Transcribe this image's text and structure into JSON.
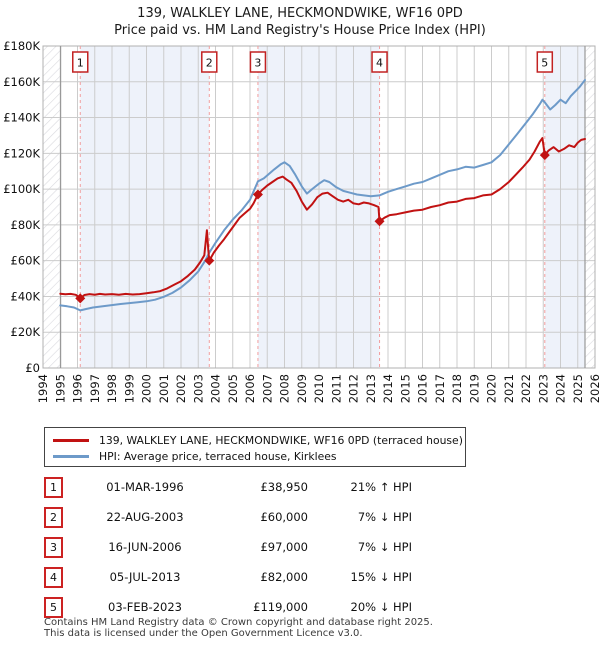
{
  "title": {
    "line1": "139, WALKLEY LANE, HECKMONDWIKE, WF16 0PD",
    "line2": "Price paid vs. HM Land Registry's House Price Index (HPI)"
  },
  "colors": {
    "property": "#c11212",
    "hpi": "#6d9ac9",
    "band": "#eef2fa",
    "flag_line": "#f29d9d",
    "flag_border": "#c22222",
    "grid": "#cccccc",
    "frame": "#b0b0b0",
    "edge_line": "#999999",
    "hatch": "#d9d9de"
  },
  "chart_data": {
    "type": "line",
    "x_axis": {
      "min": 1994,
      "max": 2026,
      "years": [
        1994,
        1995,
        1996,
        1997,
        1998,
        1999,
        2000,
        2001,
        2002,
        2003,
        2004,
        2005,
        2006,
        2007,
        2008,
        2009,
        2010,
        2011,
        2012,
        2013,
        2014,
        2015,
        2016,
        2017,
        2018,
        2019,
        2020,
        2021,
        2022,
        2023,
        2024,
        2025,
        2026
      ]
    },
    "y_axis": {
      "min": 0,
      "max": 180000,
      "ticks": [
        {
          "v": 0,
          "label": "£0"
        },
        {
          "v": 20000,
          "label": "£20K"
        },
        {
          "v": 40000,
          "label": "£40K"
        },
        {
          "v": 60000,
          "label": "£60K"
        },
        {
          "v": 80000,
          "label": "£80K"
        },
        {
          "v": 100000,
          "label": "£100K"
        },
        {
          "v": 120000,
          "label": "£120K"
        },
        {
          "v": 140000,
          "label": "£140K"
        },
        {
          "v": 160000,
          "label": "£160K"
        },
        {
          "v": 180000,
          "label": "£180K"
        }
      ]
    },
    "data_start": 1995.02,
    "data_end": 2025.42,
    "ownership_bands": [
      [
        1996.16,
        2003.64
      ],
      [
        2006.46,
        2013.51
      ],
      [
        2023.09,
        2025.42
      ]
    ],
    "hatch_regions": [
      [
        1994,
        1995.02
      ],
      [
        2025.42,
        2026
      ]
    ],
    "series": [
      {
        "name": "hpi",
        "color_key": "hpi",
        "points": [
          [
            1995.0,
            35000
          ],
          [
            1995.4,
            34500
          ],
          [
            1995.8,
            33800
          ],
          [
            1996.16,
            32200
          ],
          [
            1996.5,
            33000
          ],
          [
            1996.9,
            33800
          ],
          [
            1997.3,
            34300
          ],
          [
            1997.7,
            34800
          ],
          [
            1998.1,
            35300
          ],
          [
            1998.5,
            35800
          ],
          [
            1999.0,
            36300
          ],
          [
            1999.5,
            36800
          ],
          [
            2000.0,
            37300
          ],
          [
            2000.5,
            38200
          ],
          [
            2001.0,
            39800
          ],
          [
            2001.5,
            42000
          ],
          [
            2002.0,
            45000
          ],
          [
            2002.5,
            49000
          ],
          [
            2003.0,
            54000
          ],
          [
            2003.4,
            60000
          ],
          [
            2003.64,
            64500
          ],
          [
            2004.0,
            70000
          ],
          [
            2004.5,
            77000
          ],
          [
            2005.0,
            83000
          ],
          [
            2005.5,
            88000
          ],
          [
            2006.0,
            94000
          ],
          [
            2006.46,
            104300
          ],
          [
            2006.8,
            106000
          ],
          [
            2007.1,
            108500
          ],
          [
            2007.4,
            111000
          ],
          [
            2007.8,
            114000
          ],
          [
            2008.0,
            115000
          ],
          [
            2008.3,
            113000
          ],
          [
            2008.6,
            108500
          ],
          [
            2009.0,
            101500
          ],
          [
            2009.3,
            97500
          ],
          [
            2009.6,
            100000
          ],
          [
            2010.0,
            103000
          ],
          [
            2010.3,
            105000
          ],
          [
            2010.6,
            104000
          ],
          [
            2011.0,
            101000
          ],
          [
            2011.4,
            99000
          ],
          [
            2011.8,
            98000
          ],
          [
            2012.2,
            97000
          ],
          [
            2012.6,
            96500
          ],
          [
            2013.0,
            96000
          ],
          [
            2013.51,
            96500
          ],
          [
            2014.0,
            98500
          ],
          [
            2014.5,
            100000
          ],
          [
            2015.0,
            101500
          ],
          [
            2015.5,
            103000
          ],
          [
            2016.0,
            104000
          ],
          [
            2016.5,
            106000
          ],
          [
            2017.0,
            108000
          ],
          [
            2017.5,
            110000
          ],
          [
            2018.0,
            111000
          ],
          [
            2018.5,
            112500
          ],
          [
            2019.0,
            112000
          ],
          [
            2019.5,
            113500
          ],
          [
            2020.0,
            115000
          ],
          [
            2020.5,
            119000
          ],
          [
            2021.0,
            125000
          ],
          [
            2021.5,
            131000
          ],
          [
            2022.0,
            137000
          ],
          [
            2022.4,
            142000
          ],
          [
            2022.8,
            147500
          ],
          [
            2022.95,
            150000
          ],
          [
            2023.09,
            148500
          ],
          [
            2023.4,
            144500
          ],
          [
            2023.7,
            147000
          ],
          [
            2024.0,
            150000
          ],
          [
            2024.3,
            148000
          ],
          [
            2024.6,
            152000
          ],
          [
            2024.9,
            155000
          ],
          [
            2025.1,
            157000
          ],
          [
            2025.3,
            159500
          ],
          [
            2025.42,
            161000
          ]
        ]
      },
      {
        "name": "property",
        "color_key": "property",
        "points": [
          [
            1995.0,
            41500
          ],
          [
            1995.3,
            41200
          ],
          [
            1995.6,
            41400
          ],
          [
            1995.9,
            40900
          ],
          [
            1996.16,
            38950
          ],
          [
            1996.4,
            40800
          ],
          [
            1996.7,
            41300
          ],
          [
            1997.0,
            41000
          ],
          [
            1997.3,
            41400
          ],
          [
            1997.6,
            41100
          ],
          [
            1998.0,
            41300
          ],
          [
            1998.4,
            40900
          ],
          [
            1998.8,
            41400
          ],
          [
            1999.2,
            41100
          ],
          [
            1999.6,
            41300
          ],
          [
            2000.0,
            41800
          ],
          [
            2000.4,
            42300
          ],
          [
            2000.8,
            43000
          ],
          [
            2001.2,
            44500
          ],
          [
            2001.6,
            46500
          ],
          [
            2002.0,
            48500
          ],
          [
            2002.4,
            51500
          ],
          [
            2002.8,
            55000
          ],
          [
            2003.1,
            59000
          ],
          [
            2003.35,
            63000
          ],
          [
            2003.5,
            77000
          ],
          [
            2003.58,
            66000
          ],
          [
            2003.64,
            60000
          ],
          [
            2003.9,
            64500
          ],
          [
            2004.2,
            68500
          ],
          [
            2004.5,
            72000
          ],
          [
            2004.8,
            76000
          ],
          [
            2005.1,
            80000
          ],
          [
            2005.4,
            84000
          ],
          [
            2005.7,
            86500
          ],
          [
            2006.0,
            89000
          ],
          [
            2006.2,
            92000
          ],
          [
            2006.46,
            97000
          ],
          [
            2006.7,
            99500
          ],
          [
            2007.0,
            102000
          ],
          [
            2007.3,
            104000
          ],
          [
            2007.6,
            106000
          ],
          [
            2007.9,
            107000
          ],
          [
            2008.1,
            105500
          ],
          [
            2008.4,
            103500
          ],
          [
            2008.7,
            99000
          ],
          [
            2009.0,
            93000
          ],
          [
            2009.3,
            88500
          ],
          [
            2009.6,
            91500
          ],
          [
            2009.9,
            95500
          ],
          [
            2010.2,
            97500
          ],
          [
            2010.5,
            98000
          ],
          [
            2010.8,
            96000
          ],
          [
            2011.1,
            94000
          ],
          [
            2011.4,
            93000
          ],
          [
            2011.7,
            94000
          ],
          [
            2012.0,
            92000
          ],
          [
            2012.3,
            91500
          ],
          [
            2012.6,
            92500
          ],
          [
            2012.9,
            92000
          ],
          [
            2013.2,
            91000
          ],
          [
            2013.45,
            90000
          ],
          [
            2013.51,
            82000
          ],
          [
            2013.8,
            84000
          ],
          [
            2014.1,
            85500
          ],
          [
            2014.5,
            86000
          ],
          [
            2015.0,
            87000
          ],
          [
            2015.5,
            88000
          ],
          [
            2016.0,
            88500
          ],
          [
            2016.5,
            90000
          ],
          [
            2017.0,
            91000
          ],
          [
            2017.5,
            92500
          ],
          [
            2018.0,
            93000
          ],
          [
            2018.5,
            94500
          ],
          [
            2019.0,
            95000
          ],
          [
            2019.5,
            96500
          ],
          [
            2020.0,
            97000
          ],
          [
            2020.5,
            100000
          ],
          [
            2021.0,
            104000
          ],
          [
            2021.4,
            108000
          ],
          [
            2021.8,
            112000
          ],
          [
            2022.2,
            116500
          ],
          [
            2022.5,
            121000
          ],
          [
            2022.8,
            126500
          ],
          [
            2022.95,
            128500
          ],
          [
            2023.09,
            119000
          ],
          [
            2023.3,
            121500
          ],
          [
            2023.6,
            123500
          ],
          [
            2023.9,
            121000
          ],
          [
            2024.2,
            122500
          ],
          [
            2024.5,
            124500
          ],
          [
            2024.8,
            123500
          ],
          [
            2025.0,
            126000
          ],
          [
            2025.2,
            127500
          ],
          [
            2025.42,
            128000
          ]
        ]
      }
    ]
  },
  "legend": {
    "entries": [
      {
        "color_key": "property",
        "label": "139, WALKLEY LANE, HECKMONDWIKE, WF16 0PD (terraced house)"
      },
      {
        "color_key": "hpi",
        "label": "HPI: Average price, terraced house, Kirklees"
      }
    ]
  },
  "sales": [
    {
      "num": "1",
      "year_frac": 1996.16,
      "price": 38950,
      "date": "01-MAR-1996",
      "price_label": "£38,950",
      "hpi_rel": "21% ↑ HPI"
    },
    {
      "num": "2",
      "year_frac": 2003.64,
      "price": 60000,
      "date": "22-AUG-2003",
      "price_label": "£60,000",
      "hpi_rel": "7% ↓ HPI"
    },
    {
      "num": "3",
      "year_frac": 2006.46,
      "price": 97000,
      "date": "16-JUN-2006",
      "price_label": "£97,000",
      "hpi_rel": "7% ↓ HPI"
    },
    {
      "num": "4",
      "year_frac": 2013.51,
      "price": 82000,
      "date": "05-JUL-2013",
      "price_label": "£82,000",
      "hpi_rel": "15% ↓ HPI"
    },
    {
      "num": "5",
      "year_frac": 2023.09,
      "price": 119000,
      "date": "03-FEB-2023",
      "price_label": "£119,000",
      "hpi_rel": "20% ↓ HPI"
    }
  ],
  "footer": {
    "line1": "Contains HM Land Registry data © Crown copyright and database right 2025.",
    "line2": "This data is licensed under the Open Government Licence v3.0."
  }
}
